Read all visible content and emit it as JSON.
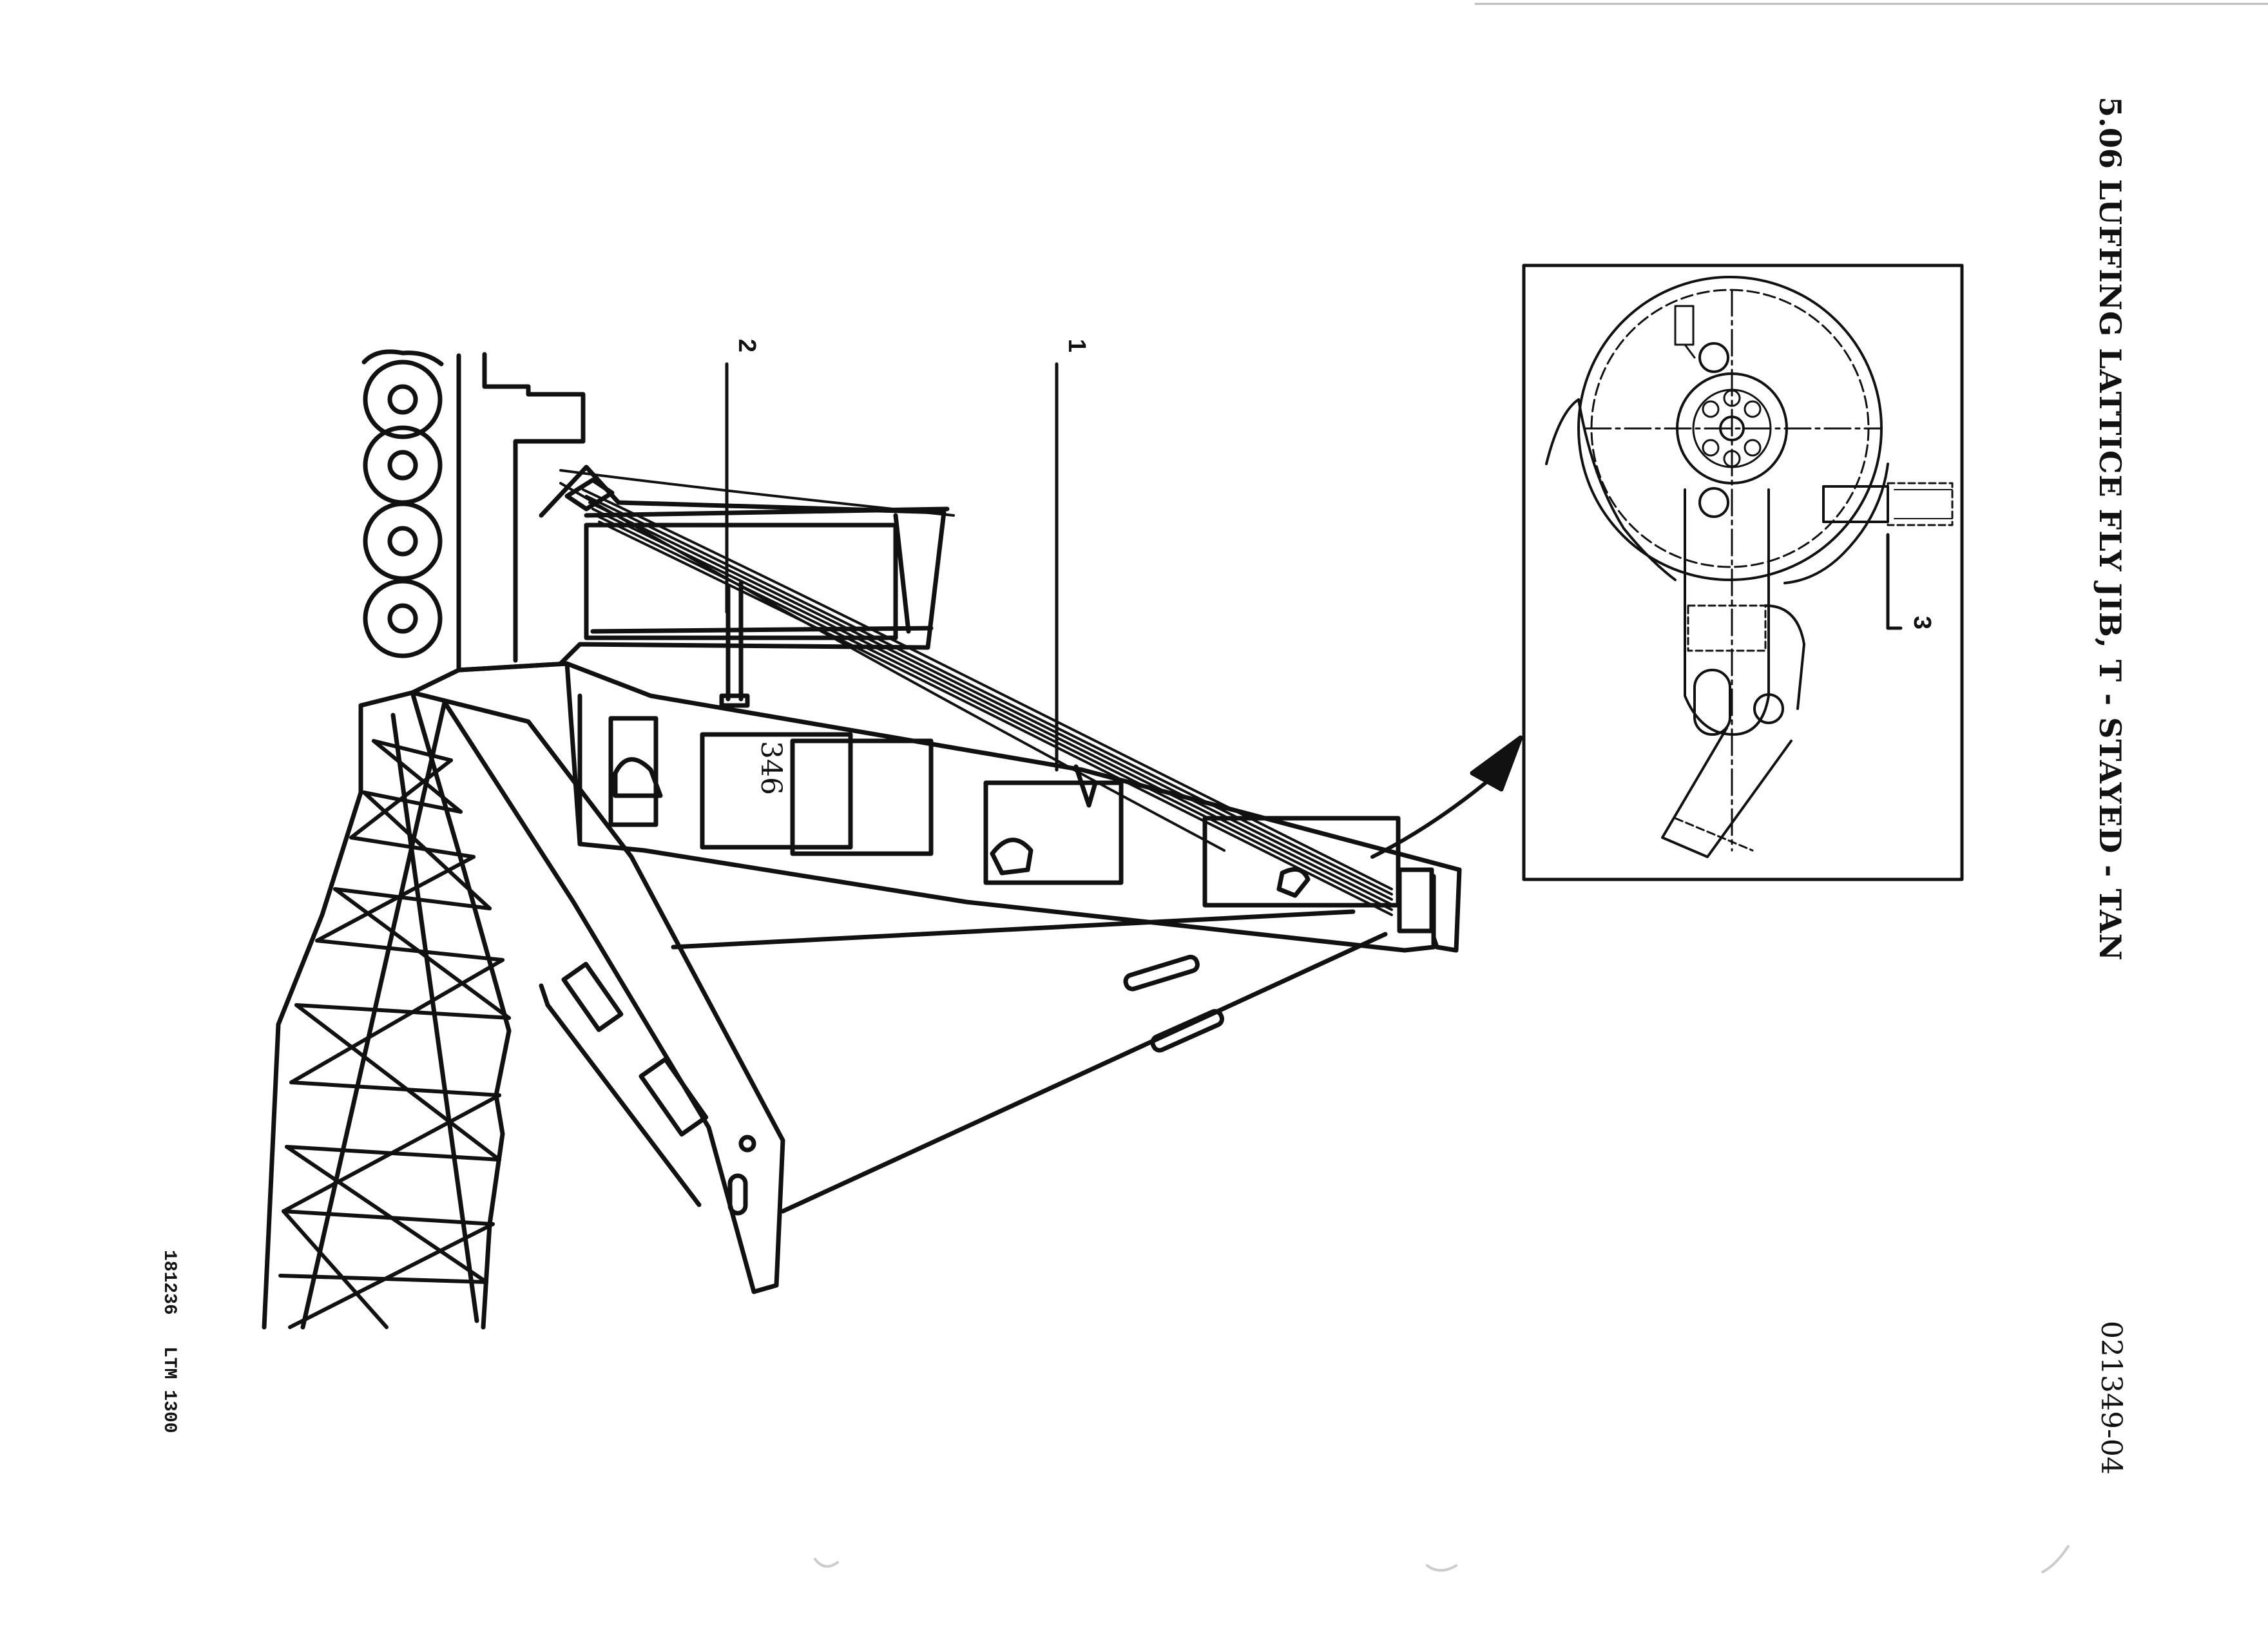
{
  "header": {
    "section_number": "5.06",
    "section_title": "LUFFING LATTICE FLY JIB, T - STAYED - TAN",
    "document_code": "021349-04"
  },
  "footer": {
    "page_number": "346",
    "drawing_id": "181236",
    "model_name": "LTM 1300"
  },
  "callouts": [
    "1",
    "2",
    "3"
  ],
  "colors": {
    "ink": "#111111",
    "paper": "#ffffff"
  }
}
